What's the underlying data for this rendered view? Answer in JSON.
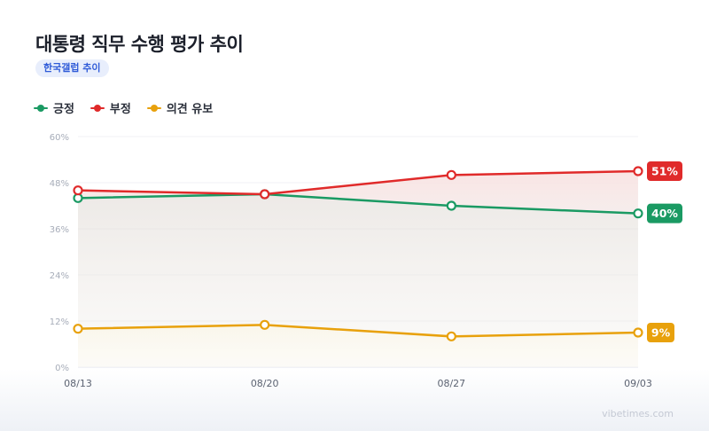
{
  "header": {
    "title": "대통령 직무 수행 평가 추이",
    "badge": "한국갤럽 추이"
  },
  "legend": [
    {
      "label": "긍정",
      "color": "#1a9a63"
    },
    {
      "label": "부정",
      "color": "#e02a2a"
    },
    {
      "label": "의견 유보",
      "color": "#e8a10c"
    }
  ],
  "watermark": "vibetimes.com",
  "chart_data": {
    "type": "line",
    "categories": [
      "08/13",
      "08/20",
      "08/27",
      "09/03"
    ],
    "ylim": [
      0,
      60
    ],
    "yticks": [
      "0%",
      "12%",
      "24%",
      "36%",
      "48%",
      "60%"
    ],
    "ytick_values": [
      0,
      12,
      24,
      36,
      48,
      60
    ],
    "grid": true,
    "legend_position": "top-left",
    "series": [
      {
        "name": "긍정",
        "values": [
          44,
          45,
          42,
          40
        ],
        "color": "#1a9a63",
        "end_label": "40%"
      },
      {
        "name": "부정",
        "values": [
          46,
          45,
          50,
          51
        ],
        "color": "#e02a2a",
        "end_label": "51%"
      },
      {
        "name": "의견 유보",
        "values": [
          10,
          11,
          8,
          9
        ],
        "color": "#e8a10c",
        "end_label": "9%"
      }
    ]
  }
}
